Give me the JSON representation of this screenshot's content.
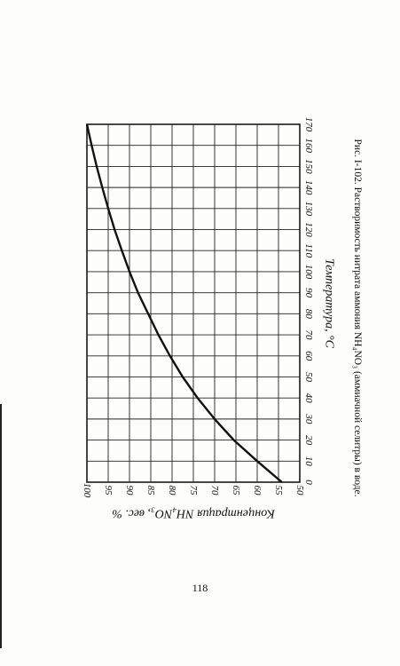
{
  "page": {
    "caption": "Рис. I-102. Растворимость нитрата аммония NH₄NO₃ (аммиачной селитры) в воде.",
    "page_number": "118"
  },
  "chart_data": {
    "type": "line",
    "title": "",
    "xlabel": "Температура, °С",
    "ylabel": "Концентрация NH₄NO₃, вес. %",
    "xlim": [
      0,
      170
    ],
    "ylim": [
      50,
      100
    ],
    "x_ticks": [
      0,
      10,
      20,
      30,
      40,
      50,
      60,
      70,
      80,
      90,
      100,
      110,
      120,
      130,
      140,
      150,
      160,
      170
    ],
    "y_ticks": [
      50,
      55,
      60,
      65,
      70,
      75,
      80,
      85,
      90,
      95,
      100
    ],
    "grid": true,
    "series": [
      {
        "x": [
          0,
          10,
          20,
          30,
          40,
          50,
          60,
          70,
          80,
          90,
          100,
          110,
          120,
          130,
          140,
          150,
          160,
          170
        ],
        "y": [
          54.2,
          60.0,
          65.5,
          70.0,
          74.0,
          77.5,
          80.5,
          83.2,
          85.6,
          88.0,
          90.0,
          91.8,
          93.5,
          95.0,
          96.4,
          97.7,
          98.9,
          100.0
        ]
      }
    ]
  }
}
